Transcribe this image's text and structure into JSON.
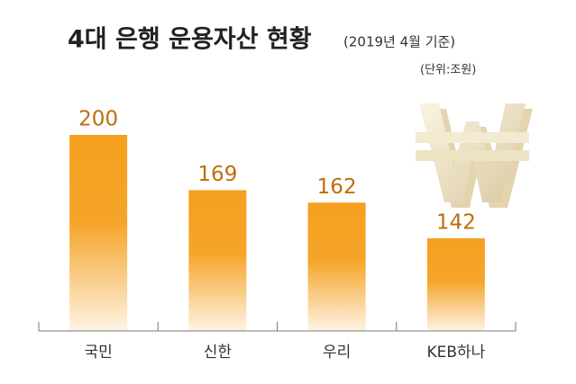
{
  "chart_data": {
    "type": "bar",
    "title": "4대 은행 운용자산 현황",
    "subtitle": "(2019년 4월 기준)",
    "unit": "(단위:조원)",
    "categories": [
      "국민",
      "신한",
      "우리",
      "KEB하나"
    ],
    "values": [
      200,
      169,
      162,
      142
    ],
    "color": "#f5a01e",
    "ylim": [
      90,
      200
    ]
  }
}
